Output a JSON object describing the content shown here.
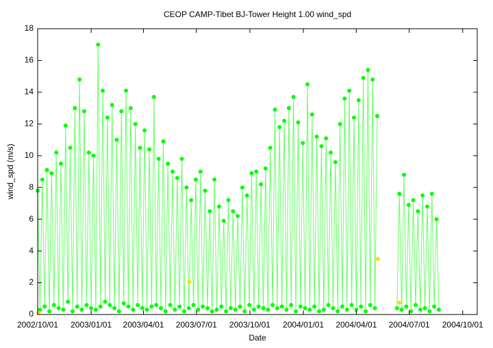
{
  "chart_data": {
    "type": "scatter-line",
    "title": "CEOP CAMP-Tibet BJ-Tower Height 1.00 wind_spd",
    "xlabel": "Date",
    "ylabel": "wind_spd (m/s)",
    "xlim": [
      "2002/10/01",
      "2004/10/26"
    ],
    "xticks": [
      "2002/10/01",
      "2003/01/01",
      "2003/04/01",
      "2003/07/01",
      "2003/10/01",
      "2004/01/01",
      "2004/04/01",
      "2004/07/01",
      "2004/10/01"
    ],
    "ylim": [
      0,
      18
    ],
    "yticks": [
      0,
      2,
      4,
      6,
      8,
      10,
      12,
      14,
      16,
      18
    ],
    "series": [
      {
        "color": "#00ff00",
        "line_color": "#66ff66",
        "x": [
          "2002/10/01",
          "2002/10/05",
          "2002/10/09",
          "2002/10/13",
          "2002/10/17",
          "2002/10/21",
          "2002/10/25",
          "2002/10/29",
          "2002/11/02",
          "2002/11/06",
          "2002/11/10",
          "2002/11/14",
          "2002/11/18",
          "2002/11/22",
          "2002/11/26",
          "2002/11/30",
          "2002/12/04",
          "2002/12/08",
          "2002/12/12",
          "2002/12/16",
          "2002/12/20",
          "2002/12/24",
          "2002/12/28",
          "2003/01/01",
          "2003/01/05",
          "2003/01/09",
          "2003/01/13",
          "2003/01/17",
          "2003/01/21",
          "2003/01/25",
          "2003/01/29",
          "2003/02/02",
          "2003/02/06",
          "2003/02/10",
          "2003/02/14",
          "2003/02/18",
          "2003/02/22",
          "2003/02/26",
          "2003/03/02",
          "2003/03/06",
          "2003/03/10",
          "2003/03/14",
          "2003/03/18",
          "2003/03/22",
          "2003/03/26",
          "2003/03/30",
          "2003/04/03",
          "2003/04/07",
          "2003/04/11",
          "2003/04/15",
          "2003/04/19",
          "2003/04/23",
          "2003/04/27",
          "2003/05/01",
          "2003/05/05",
          "2003/05/09",
          "2003/05/13",
          "2003/05/17",
          "2003/05/21",
          "2003/05/25",
          "2003/05/29",
          "2003/06/02",
          "2003/06/06",
          "2003/06/10",
          "2003/06/14",
          "2003/06/18",
          "2003/06/22",
          "2003/06/26",
          "2003/06/30",
          "2003/07/04",
          "2003/07/08",
          "2003/07/12",
          "2003/07/16",
          "2003/07/20",
          "2003/07/24",
          "2003/07/28",
          "2003/08/01",
          "2003/08/05",
          "2003/08/09",
          "2003/08/13",
          "2003/08/17",
          "2003/08/21",
          "2003/08/25",
          "2003/08/29",
          "2003/09/02",
          "2003/09/06",
          "2003/09/10",
          "2003/09/14",
          "2003/09/18",
          "2003/09/22",
          "2003/09/26",
          "2003/09/30",
          "2003/10/04",
          "2003/10/08",
          "2003/10/12",
          "2003/10/16",
          "2003/10/20",
          "2003/10/24",
          "2003/10/28",
          "2003/11/01",
          "2003/11/05",
          "2003/11/09",
          "2003/11/13",
          "2003/11/17",
          "2003/11/21",
          "2003/11/25",
          "2003/11/29",
          "2003/12/03",
          "2003/12/07",
          "2003/12/11",
          "2003/12/15",
          "2003/12/19",
          "2003/12/23",
          "2003/12/27",
          "2003/12/31",
          "2004/01/04",
          "2004/01/08",
          "2004/01/12",
          "2004/01/16",
          "2004/01/20",
          "2004/01/24",
          "2004/01/28",
          "2004/02/01",
          "2004/02/05",
          "2004/02/09",
          "2004/02/13",
          "2004/02/17",
          "2004/02/21",
          "2004/02/25",
          "2004/02/29",
          "2004/03/04",
          "2004/03/08",
          "2004/03/12",
          "2004/03/16",
          "2004/03/20",
          "2004/03/24",
          "2004/03/28",
          "2004/04/01",
          "2004/04/05",
          "2004/04/09",
          "2004/04/13",
          "2004/04/17",
          "2004/04/21",
          "2004/04/25",
          "2004/04/29",
          "2004/05/03",
          "2004/05/07",
          "2004/05/25",
          "2004/06/10",
          "2004/06/14",
          "2004/06/18",
          "2004/06/22",
          "2004/06/26",
          "2004/06/30",
          "2004/07/04",
          "2004/07/08",
          "2004/07/12",
          "2004/07/16",
          "2004/07/20",
          "2004/07/24",
          "2004/07/28",
          "2004/08/01",
          "2004/08/05",
          "2004/08/09",
          "2004/08/13",
          "2004/08/17",
          "2004/08/21"
        ],
        "values": [
          7.8,
          0.3,
          8.5,
          0.5,
          9.1,
          0.2,
          8.9,
          0.6,
          10.2,
          0.4,
          9.5,
          0.3,
          11.9,
          0.8,
          10.5,
          0.2,
          13.0,
          0.5,
          14.8,
          0.3,
          12.8,
          0.6,
          10.2,
          0.4,
          10.0,
          0.3,
          17.0,
          0.5,
          14.1,
          0.8,
          12.4,
          0.6,
          13.2,
          0.4,
          11.0,
          0.2,
          12.8,
          0.7,
          14.1,
          0.5,
          13.0,
          0.3,
          12.0,
          0.6,
          10.5,
          0.4,
          11.6,
          0.3,
          10.4,
          0.5,
          13.7,
          0.6,
          9.8,
          0.4,
          10.9,
          0.2,
          9.5,
          0.6,
          9.0,
          0.3,
          8.6,
          0.5,
          9.8,
          0.2,
          8.0,
          0.4,
          7.2,
          0.6,
          8.5,
          0.3,
          9.0,
          0.5,
          7.8,
          0.4,
          6.5,
          0.2,
          8.5,
          0.3,
          6.8,
          0.5,
          5.9,
          0.2,
          7.2,
          0.4,
          6.5,
          0.3,
          6.2,
          0.5,
          8.0,
          0.2,
          7.5,
          0.6,
          8.9,
          0.3,
          9.0,
          0.5,
          8.2,
          0.4,
          9.2,
          0.3,
          10.5,
          0.6,
          12.9,
          0.4,
          11.8,
          0.5,
          12.2,
          0.3,
          13.0,
          0.6,
          13.7,
          0.2,
          12.1,
          0.5,
          10.8,
          0.4,
          14.5,
          0.3,
          12.6,
          0.5,
          11.2,
          0.2,
          10.6,
          0.3,
          11.1,
          0.6,
          10.2,
          0.4,
          9.6,
          0.2,
          12.0,
          0.5,
          13.6,
          0.3,
          14.1,
          0.6,
          12.4,
          0.3,
          13.5,
          0.5,
          14.9,
          0.2,
          15.4,
          0.6,
          14.8,
          0.4,
          12.5,
          null,
          0.4,
          7.6,
          0.3,
          8.8,
          0.5,
          6.9,
          0.2,
          7.2,
          0.6,
          6.5,
          0.3,
          7.5,
          0.4,
          6.8,
          0.2,
          7.6,
          0.5,
          6.0,
          0.3
        ]
      },
      {
        "color": "#ffdd00",
        "x": [
          "2002/10/02",
          "2003/06/19",
          "2004/05/08",
          "2004/06/14"
        ],
        "values": [
          0.1,
          2.05,
          3.5,
          0.75
        ]
      }
    ]
  }
}
